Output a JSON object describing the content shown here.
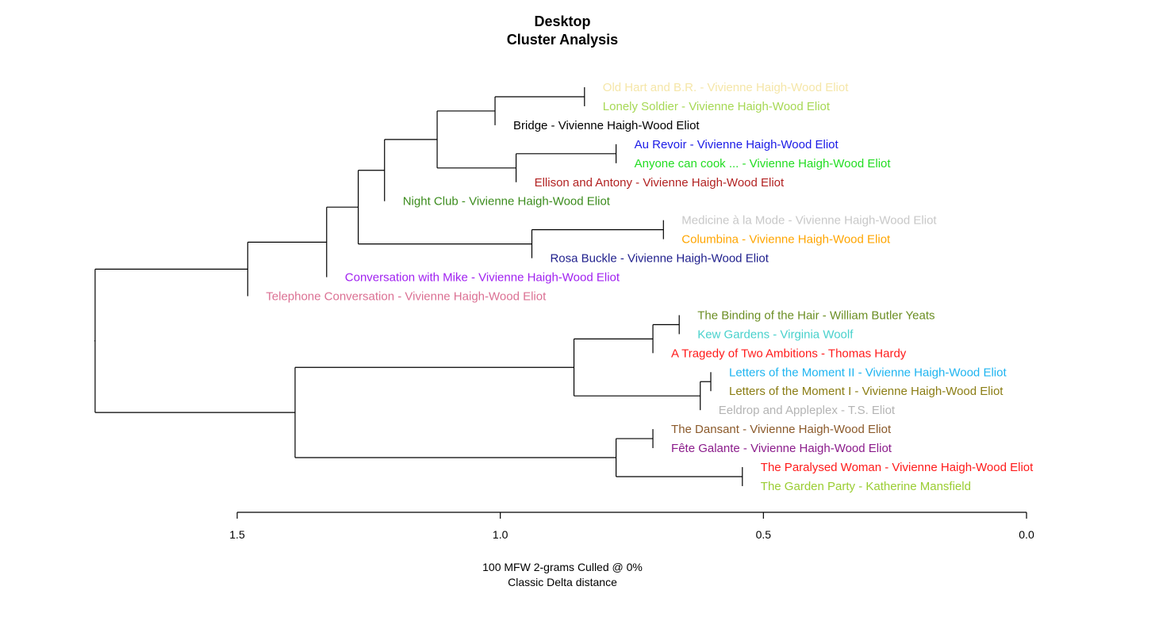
{
  "chart_data": {
    "type": "dendrogram",
    "title": [
      "Desktop",
      "Cluster Analysis"
    ],
    "caption": [
      "100 MFW 2-grams Culled @ 0%",
      "Classic Delta distance"
    ],
    "x_axis": {
      "range": [
        1.5,
        0.0
      ],
      "ticks": [
        1.5,
        1.0,
        0.5,
        0.0
      ],
      "tick_labels": [
        "1.5",
        "1.0",
        "0.5",
        "0.0"
      ]
    },
    "leaves": [
      {
        "label": "Old Hart and B.R. - Vivienne Haigh-Wood Eliot",
        "color": "#F5E6A8"
      },
      {
        "label": "Lonely Soldier - Vivienne Haigh-Wood Eliot",
        "color": "#A6D854"
      },
      {
        "label": "Bridge - Vivienne Haigh-Wood Eliot",
        "color": "#000000"
      },
      {
        "label": "Au Revoir - Vivienne Haigh-Wood Eliot",
        "color": "#1A1AE6"
      },
      {
        "label": "Anyone can cook ... - Vivienne Haigh-Wood Eliot",
        "color": "#22DD22"
      },
      {
        "label": "Ellison and Antony - Vivienne Haigh-Wood Eliot",
        "color": "#B22222"
      },
      {
        "label": "Night Club - Vivienne Haigh-Wood Eliot",
        "color": "#3C8C1E"
      },
      {
        "label": "Medicine à la Mode - Vivienne Haigh-Wood Eliot",
        "color": "#C8C8C8"
      },
      {
        "label": "Columbina - Vivienne Haigh-Wood Eliot",
        "color": "#FFA500"
      },
      {
        "label": "Rosa Buckle - Vivienne Haigh-Wood Eliot",
        "color": "#1F1F8C"
      },
      {
        "label": "Conversation with Mike - Vivienne Haigh-Wood Eliot",
        "color": "#A020F0"
      },
      {
        "label": "Telephone Conversation - Vivienne Haigh-Wood Eliot",
        "color": "#DB7093"
      },
      {
        "label": "The Binding of the Hair - William Butler Yeats",
        "color": "#6B8E23"
      },
      {
        "label": "Kew Gardens - Virginia Woolf",
        "color": "#48D1CC"
      },
      {
        "label": "A Tragedy of Two Ambitions - Thomas Hardy",
        "color": "#FF1A1A"
      },
      {
        "label": "Letters of the Moment II - Vivienne Haigh-Wood Eliot",
        "color": "#1EB4F0"
      },
      {
        "label": "Letters of the Moment I - Vivienne Haigh-Wood Eliot",
        "color": "#8B7D14"
      },
      {
        "label": "Eeldrop and Appleplex - T.S. Eliot",
        "color": "#B4B4B4"
      },
      {
        "label": "The Dansant - Vivienne Haigh-Wood Eliot",
        "color": "#8B5A2B"
      },
      {
        "label": "Fête Galante - Vivienne Haigh-Wood Eliot",
        "color": "#8B1C8B"
      },
      {
        "label": "The Paralysed Woman - Vivienne Haigh-Wood Eliot",
        "color": "#FF1A1A"
      },
      {
        "label": "The Garden Party - Katherine Mansfield",
        "color": "#9ACD32"
      }
    ],
    "merges": [
      {
        "id": "m1",
        "height": 0.84,
        "children": [
          "L0",
          "L1"
        ]
      },
      {
        "id": "m2",
        "height": 1.01,
        "children": [
          "m1",
          "L2"
        ]
      },
      {
        "id": "m3",
        "height": 0.78,
        "children": [
          "L3",
          "L4"
        ]
      },
      {
        "id": "m4",
        "height": 0.97,
        "children": [
          "m3",
          "L5"
        ]
      },
      {
        "id": "m5",
        "height": 1.12,
        "children": [
          "m2",
          "m4"
        ]
      },
      {
        "id": "m6",
        "height": 1.22,
        "children": [
          "m5",
          "L6"
        ]
      },
      {
        "id": "m7",
        "height": 0.69,
        "children": [
          "L7",
          "L8"
        ]
      },
      {
        "id": "m8",
        "height": 0.94,
        "children": [
          "m7",
          "L9"
        ]
      },
      {
        "id": "m9",
        "height": 1.27,
        "children": [
          "m6",
          "m8"
        ]
      },
      {
        "id": "m10",
        "height": 1.33,
        "children": [
          "m9",
          "L10"
        ]
      },
      {
        "id": "m11",
        "height": 1.48,
        "children": [
          "m10",
          "L11"
        ]
      },
      {
        "id": "m12",
        "height": 0.66,
        "children": [
          "L12",
          "L13"
        ]
      },
      {
        "id": "m13",
        "height": 0.71,
        "children": [
          "m12",
          "L14"
        ]
      },
      {
        "id": "m14",
        "height": 0.6,
        "children": [
          "L15",
          "L16"
        ]
      },
      {
        "id": "m15",
        "height": 0.62,
        "children": [
          "m14",
          "L17"
        ]
      },
      {
        "id": "m16",
        "height": 0.86,
        "children": [
          "m13",
          "m15"
        ]
      },
      {
        "id": "m17",
        "height": 0.71,
        "children": [
          "L18",
          "L19"
        ]
      },
      {
        "id": "m18",
        "height": 0.54,
        "children": [
          "L20",
          "L21"
        ]
      },
      {
        "id": "m19",
        "height": 0.78,
        "children": [
          "m17",
          "m18"
        ]
      },
      {
        "id": "m20",
        "height": 1.39,
        "children": [
          "m16",
          "m19"
        ]
      },
      {
        "id": "m21",
        "height": 1.77,
        "children": [
          "m11",
          "m20"
        ]
      }
    ]
  }
}
